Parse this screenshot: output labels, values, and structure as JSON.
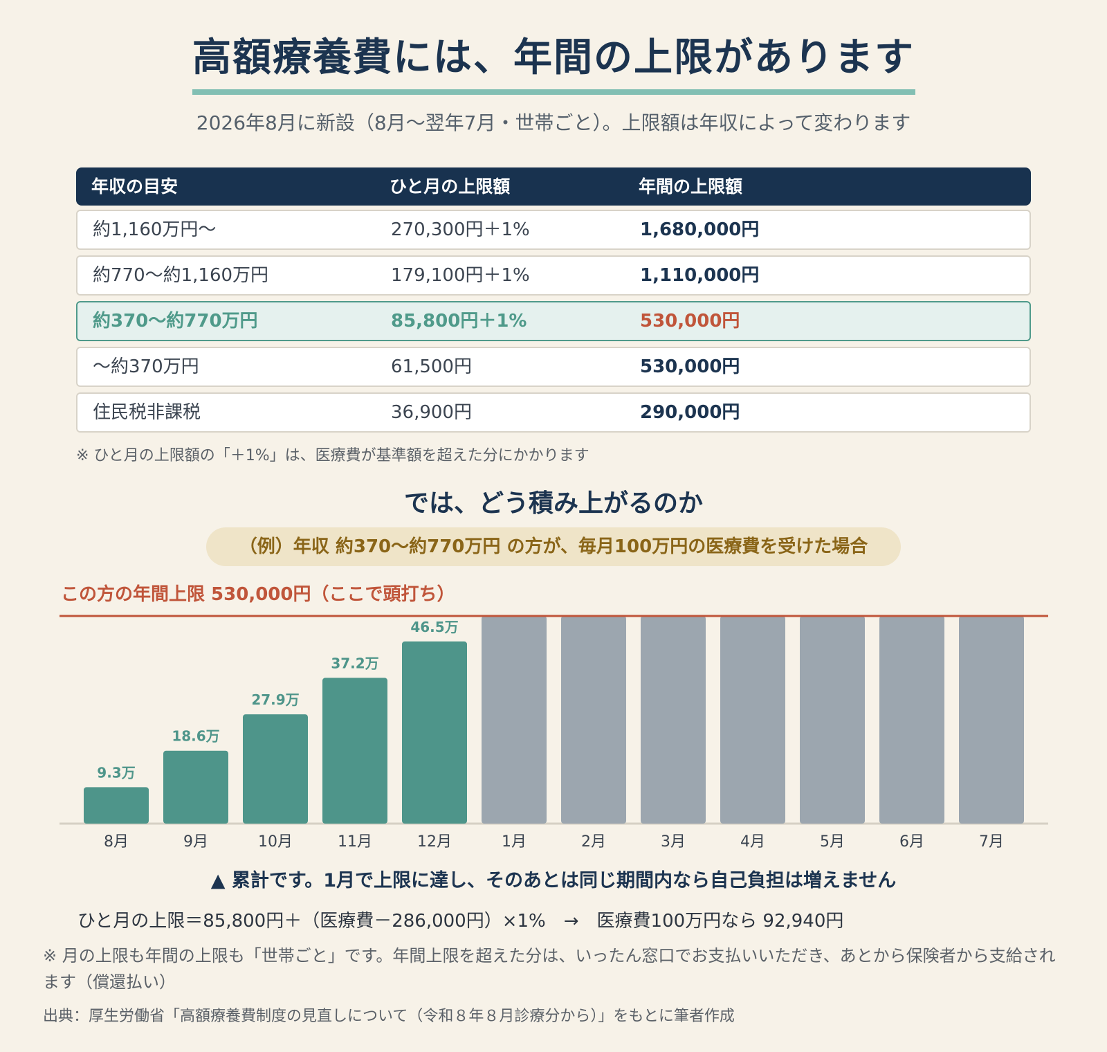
{
  "header": {
    "title": "高額療養費には、年間の上限があります",
    "subtitle": "2026年8月に新設（8月～翌年7月・世帯ごと）。上限額は年収によって変わります"
  },
  "table": {
    "headers": [
      "年収の目安",
      "ひと月の上限額",
      "年間の上限額"
    ],
    "rows": [
      {
        "income": "約1,160万円～",
        "monthly": "270,300円＋1%",
        "annual": "1,680,000円"
      },
      {
        "income": "約770～約1,160万円",
        "monthly": "179,100円＋1%",
        "annual": "1,110,000円"
      },
      {
        "income": "約370～約770万円",
        "monthly": "85,800円＋1%",
        "annual": "530,000円"
      },
      {
        "income": "～約370万円",
        "monthly": "61,500円",
        "annual": "530,000円"
      },
      {
        "income": "住民税非課税",
        "monthly": "36,900円",
        "annual": "290,000円"
      }
    ],
    "note": "※ ひと月の上限額の「＋1%」は、医療費が基準額を超えた分にかかります"
  },
  "section2": {
    "heading": "では、どう積み上がるのか",
    "example": "（例）年収 約370～約770万円 の方が、毎月100万円の医療費を受けた場合"
  },
  "chart_data": {
    "type": "bar",
    "categories": [
      "8月",
      "9月",
      "10月",
      "11月",
      "12月",
      "1月",
      "2月",
      "3月",
      "4月",
      "5月",
      "6月",
      "7月"
    ],
    "values": [
      9.3,
      18.6,
      27.9,
      37.2,
      46.5,
      53,
      53,
      53,
      53,
      53,
      53,
      53
    ],
    "data_labels": [
      "9.3万",
      "18.6万",
      "27.9万",
      "37.2万",
      "46.5万",
      "",
      "",
      "",
      "",
      "",
      "",
      ""
    ],
    "unit": "万円",
    "ylim": [
      0,
      53
    ],
    "cap_value": 53,
    "cap_label": "この方の年間上限 530,000円（ここで頭打ち）",
    "grid": false,
    "colors": {
      "accumulating": "#4e958a",
      "capped": "#9ca6af",
      "cap_line": "#c0553a",
      "label": "#4e958a"
    }
  },
  "chart_note": "▲ 累計です。1月で上限に達し、そのあとは同じ期間内なら自己負担は増えません",
  "formula": "ひと月の上限＝85,800円＋（医療費－286,000円）×1%　→　医療費100万円なら 92,940円",
  "footer": {
    "note": "※ 月の上限も年間の上限も「世帯ごと」です。年間上限を超えた分は、いったん窓口でお支払いいただき、あとから保険者から支給されます（償還払い）",
    "source": "出典：厚生労働省「高額療養費制度の見直しについて（令和８年８月診療分から）」をもとに筆者作成"
  }
}
